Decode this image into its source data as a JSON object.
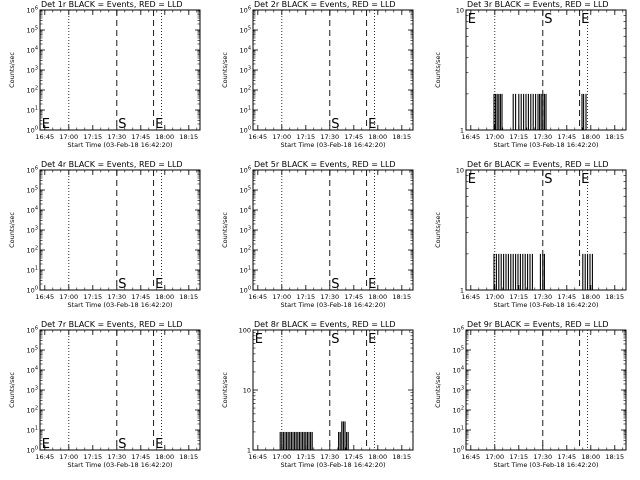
{
  "chart_data": [
    {
      "type": "bar",
      "title": "Det 1r BLACK = Events, RED = LLD",
      "xlabel": "Start Time (03-Feb-18 16:42:20)",
      "ylabel": "Counts/sec",
      "yscale": "log",
      "ylim": [
        1,
        1000000
      ],
      "ytick_labels": [
        "10^0",
        "10^1",
        "10^2",
        "10^3",
        "10^4",
        "10^5",
        "10^6"
      ],
      "xlim_min_from_1642": [
        0,
        100
      ],
      "xtick_labels": [
        "16:45",
        "17:00",
        "17:15",
        "17:30",
        "17:45",
        "18:00",
        "18:15"
      ],
      "flare_markers": [
        {
          "label": "E",
          "time": "16:45"
        },
        {
          "label": "S",
          "time": "17:30"
        },
        {
          "label": "E",
          "time": "17:53"
        }
      ],
      "dashed_lines": [
        "17:30",
        "17:53"
      ],
      "dotted_lines": [
        "17:00",
        "17:58"
      ],
      "series": []
    },
    {
      "type": "bar",
      "title": "Det 2r BLACK = Events, RED = LLD",
      "xlabel": "Start Time (03-Feb-18 16:42:20)",
      "ylabel": "Counts/sec",
      "yscale": "log",
      "ylim": [
        1,
        1000000
      ],
      "ytick_labels": [
        "10^0",
        "10^1",
        "10^2",
        "10^3",
        "10^4",
        "10^5",
        "10^6"
      ],
      "xlim_min_from_1642": [
        0,
        100
      ],
      "xtick_labels": [
        "16:45",
        "17:00",
        "17:15",
        "17:30",
        "17:45",
        "18:00",
        "18:15"
      ],
      "flare_markers": [
        {
          "label": "S",
          "time": "17:30"
        },
        {
          "label": "E",
          "time": "17:53"
        }
      ],
      "dashed_lines": [
        "17:30",
        "17:53"
      ],
      "dotted_lines": [
        "17:00",
        "17:58"
      ],
      "series": []
    },
    {
      "type": "bar",
      "title": "Det 3r BLACK = Events, RED = LLD",
      "xlabel": "Start Time (03-Feb-18 16:42:20)",
      "ylabel": "Counts/sec",
      "yscale": "log",
      "ylim": [
        1,
        10
      ],
      "ytick_labels": [
        "1",
        "10"
      ],
      "xlim_min_from_1642": [
        0,
        100
      ],
      "xtick_labels": [
        "16:45",
        "17:00",
        "17:15",
        "17:30",
        "17:45",
        "18:00",
        "18:15"
      ],
      "flare_markers": [
        {
          "label": "E",
          "time": "16:45"
        },
        {
          "label": "S",
          "time": "17:30"
        },
        {
          "label": "E",
          "time": "17:53"
        }
      ],
      "dashed_lines": [
        "17:30",
        "17:53"
      ],
      "dotted_lines": [
        "17:00",
        "17:58"
      ],
      "series": [
        {
          "values": [
            [
              17.5,
              2
            ],
            [
              18.5,
              2
            ],
            [
              19.5,
              2
            ],
            [
              20.5,
              2
            ],
            [
              21.5,
              2
            ],
            [
              22.5,
              2
            ],
            [
              29.5,
              2
            ],
            [
              31,
              2
            ],
            [
              33,
              2
            ],
            [
              34.5,
              2
            ],
            [
              36,
              2
            ],
            [
              37.5,
              2
            ],
            [
              39,
              2
            ],
            [
              40.5,
              2
            ],
            [
              42,
              2
            ],
            [
              43.5,
              2
            ],
            [
              45,
              2
            ],
            [
              46,
              2
            ],
            [
              47,
              2
            ],
            [
              48,
              2
            ],
            [
              49,
              2
            ],
            [
              50,
              2
            ],
            [
              72.5,
              2
            ],
            [
              73.5,
              2
            ],
            [
              75,
              2
            ]
          ]
        }
      ]
    },
    {
      "type": "bar",
      "title": "Det 4r BLACK = Events, RED = LLD",
      "xlabel": "Start Time (03-Feb-18 16:42:20)",
      "ylabel": "Counts/sec",
      "yscale": "log",
      "ylim": [
        1,
        1000000
      ],
      "ytick_labels": [
        "10^0",
        "10^1",
        "10^2",
        "10^3",
        "10^4",
        "10^5",
        "10^6"
      ],
      "xlim_min_from_1642": [
        0,
        100
      ],
      "xtick_labels": [
        "16:45",
        "17:00",
        "17:15",
        "17:30",
        "17:45",
        "18:00",
        "18:15"
      ],
      "flare_markers": [
        {
          "label": "S",
          "time": "17:30"
        },
        {
          "label": "E",
          "time": "17:53"
        }
      ],
      "dashed_lines": [
        "17:30",
        "17:53"
      ],
      "dotted_lines": [
        "17:00",
        "17:58"
      ],
      "series": []
    },
    {
      "type": "bar",
      "title": "Det 5r BLACK = Events, RED = LLD",
      "xlabel": "Start Time (03-Feb-18 16:42:20)",
      "ylabel": "Counts/sec",
      "yscale": "log",
      "ylim": [
        1,
        1000000
      ],
      "ytick_labels": [
        "10^0",
        "10^1",
        "10^2",
        "10^3",
        "10^4",
        "10^5",
        "10^6"
      ],
      "xlim_min_from_1642": [
        0,
        100
      ],
      "xtick_labels": [
        "16:45",
        "17:00",
        "17:15",
        "17:30",
        "17:45",
        "18:00",
        "18:15"
      ],
      "flare_markers": [
        {
          "label": "S",
          "time": "17:30"
        },
        {
          "label": "E",
          "time": "17:53"
        }
      ],
      "dashed_lines": [
        "17:30",
        "17:53"
      ],
      "dotted_lines": [
        "17:00",
        "17:58"
      ],
      "series": []
    },
    {
      "type": "bar",
      "title": "Det 6r BLACK = Events, RED = LLD",
      "xlabel": "Start Time (03-Feb-18 16:42:20)",
      "ylabel": "Counts/sec",
      "yscale": "log",
      "ylim": [
        1,
        10
      ],
      "ytick_labels": [
        "1",
        "10"
      ],
      "xlim_min_from_1642": [
        0,
        100
      ],
      "xtick_labels": [
        "16:45",
        "17:00",
        "17:15",
        "17:30",
        "17:45",
        "18:00",
        "18:15"
      ],
      "flare_markers": [
        {
          "label": "E",
          "time": "16:45"
        },
        {
          "label": "S",
          "time": "17:30"
        },
        {
          "label": "E",
          "time": "17:53"
        }
      ],
      "dashed_lines": [
        "17:30",
        "17:53"
      ],
      "dotted_lines": [
        "17:00",
        "17:58"
      ],
      "series": [
        {
          "values": [
            [
              17.5,
              2
            ],
            [
              19,
              2
            ],
            [
              20.5,
              2
            ],
            [
              22,
              2
            ],
            [
              23.5,
              2
            ],
            [
              25,
              2
            ],
            [
              26.5,
              2
            ],
            [
              28,
              2
            ],
            [
              29.5,
              2
            ],
            [
              31,
              2
            ],
            [
              32.5,
              2
            ],
            [
              34,
              2
            ],
            [
              35.5,
              2
            ],
            [
              37,
              2
            ],
            [
              38.5,
              2
            ],
            [
              40,
              2
            ],
            [
              41.5,
              2
            ],
            [
              46.5,
              2
            ],
            [
              48,
              2
            ],
            [
              49,
              2
            ],
            [
              73,
              2
            ],
            [
              74.5,
              2
            ],
            [
              76,
              2
            ],
            [
              77.5,
              2
            ],
            [
              79,
              2
            ]
          ]
        }
      ]
    },
    {
      "type": "bar",
      "title": "Det 7r BLACK = Events, RED = LLD",
      "xlabel": "Start Time (03-Feb-18 16:42:20)",
      "ylabel": "Counts/sec",
      "yscale": "log",
      "ylim": [
        1,
        1000000
      ],
      "ytick_labels": [
        "10^0",
        "10^1",
        "10^2",
        "10^3",
        "10^4",
        "10^5",
        "10^6"
      ],
      "xlim_min_from_1642": [
        0,
        100
      ],
      "xtick_labels": [
        "16:45",
        "17:00",
        "17:15",
        "17:30",
        "17:45",
        "18:00",
        "18:15"
      ],
      "flare_markers": [
        {
          "label": "E",
          "time": "16:45"
        },
        {
          "label": "S",
          "time": "17:30"
        },
        {
          "label": "E",
          "time": "17:53"
        }
      ],
      "dashed_lines": [
        "17:30",
        "17:53"
      ],
      "dotted_lines": [
        "17:00",
        "17:58"
      ],
      "series": []
    },
    {
      "type": "bar",
      "title": "Det 8r BLACK = Events, RED = LLD",
      "xlabel": "Start Time (03-Feb-18 16:42:20)",
      "ylabel": "Counts/sec",
      "yscale": "log",
      "ylim": [
        1,
        100
      ],
      "ytick_labels": [
        "1",
        "10",
        "100"
      ],
      "xlim_min_from_1642": [
        0,
        100
      ],
      "xtick_labels": [
        "16:45",
        "17:00",
        "17:15",
        "17:30",
        "17:45",
        "18:00",
        "18:15"
      ],
      "flare_markers": [
        {
          "label": "E",
          "time": "16:45"
        },
        {
          "label": "S",
          "time": "17:30"
        },
        {
          "label": "E",
          "time": "17:53"
        }
      ],
      "dashed_lines": [
        "17:30",
        "17:53"
      ],
      "dotted_lines": [
        "17:00",
        "17:58"
      ],
      "series": [
        {
          "values": [
            [
              17,
              2
            ],
            [
              18,
              2
            ],
            [
              19,
              2
            ],
            [
              20,
              2
            ],
            [
              21,
              2
            ],
            [
              22,
              2
            ],
            [
              23,
              2
            ],
            [
              24,
              2
            ],
            [
              25,
              2
            ],
            [
              26,
              2
            ],
            [
              27,
              2
            ],
            [
              28,
              2
            ],
            [
              29,
              2
            ],
            [
              30,
              2
            ],
            [
              31,
              2
            ],
            [
              32,
              2
            ],
            [
              33,
              2
            ],
            [
              34,
              2
            ],
            [
              35,
              2
            ],
            [
              36,
              2
            ],
            [
              37,
              2
            ],
            [
              53.5,
              2
            ],
            [
              54.5,
              2
            ],
            [
              55.5,
              3
            ],
            [
              56.5,
              3
            ],
            [
              57.5,
              3
            ],
            [
              58.5,
              2
            ],
            [
              59.5,
              2
            ]
          ]
        }
      ]
    },
    {
      "type": "bar",
      "title": "Det 9r BLACK = Events, RED = LLD",
      "xlabel": "Start Time (03-Feb-18 16:42:20)",
      "ylabel": "Counts/sec",
      "yscale": "log",
      "ylim": [
        1,
        1000000
      ],
      "ytick_labels": [
        "10^0",
        "10^1",
        "10^2",
        "10^3",
        "10^4",
        "10^5",
        "10^6"
      ],
      "xlim_min_from_1642": [
        0,
        100
      ],
      "xtick_labels": [
        "16:45",
        "17:00",
        "17:15",
        "17:30",
        "17:45",
        "18:00",
        "18:15"
      ],
      "flare_markers": [],
      "dashed_lines": [
        "17:30",
        "17:53"
      ],
      "dotted_lines": [
        "17:00",
        "17:58"
      ],
      "series": []
    }
  ]
}
